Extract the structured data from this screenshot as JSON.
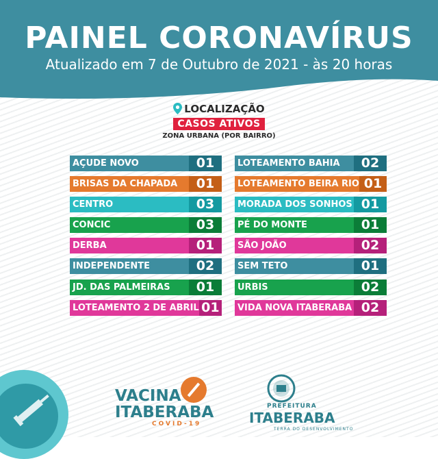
{
  "header": {
    "title": "PAINEL CORONAVÍRUS",
    "subtitle": "Atualizado em 7 de Outubro de 2021 - às 20 horas"
  },
  "section": {
    "location_label": "LOCALIZAÇÃO",
    "badge": "CASOS ATIVOS",
    "zone": "ZONA URBANA (POR BAIRRO)"
  },
  "left_column": [
    {
      "name": "AÇUDE NOVO",
      "count": "01",
      "color": "#3e8ea0",
      "dark": "#1f6f80"
    },
    {
      "name": "BRISAS DA CHAPADA",
      "count": "01",
      "color": "#e57a2e",
      "dark": "#c45f17"
    },
    {
      "name": "CENTRO",
      "count": "03",
      "color": "#2bbcc2",
      "dark": "#149aa1"
    },
    {
      "name": "CONCIC",
      "count": "03",
      "color": "#18a24d",
      "dark": "#0b7d38"
    },
    {
      "name": "DERBA",
      "count": "01",
      "color": "#e0389a",
      "dark": "#b5207a"
    },
    {
      "name": "INDEPENDENTE",
      "count": "02",
      "color": "#3e8ea0",
      "dark": "#1f6f80"
    },
    {
      "name": "JD. DAS PALMEIRAS",
      "count": "01",
      "color": "#18a24d",
      "dark": "#0b7d38"
    },
    {
      "name": "LOTEAMENTO 2 DE ABRIL",
      "count": "01",
      "color": "#e0389a",
      "dark": "#b5207a"
    }
  ],
  "right_column": [
    {
      "name": "LOTEAMENTO BAHIA",
      "count": "02",
      "color": "#3e8ea0",
      "dark": "#1f6f80"
    },
    {
      "name": "LOTEAMENTO BEIRA RIO",
      "count": "01",
      "color": "#e57a2e",
      "dark": "#c45f17"
    },
    {
      "name": "MORADA DOS SONHOS",
      "count": "01",
      "color": "#2bbcc2",
      "dark": "#149aa1"
    },
    {
      "name": "PÉ DO MONTE",
      "count": "01",
      "color": "#18a24d",
      "dark": "#0b7d38"
    },
    {
      "name": "SÃO JOÃO",
      "count": "02",
      "color": "#e0389a",
      "dark": "#b5207a"
    },
    {
      "name": "SEM TETO",
      "count": "01",
      "color": "#3e8ea0",
      "dark": "#1f6f80"
    },
    {
      "name": "URBIS",
      "count": "02",
      "color": "#18a24d",
      "dark": "#0b7d38"
    },
    {
      "name": "VIDA NOVA ITABERABA",
      "count": "02",
      "color": "#e0389a",
      "dark": "#b5207a"
    }
  ],
  "footer": {
    "vacina_line1": "VACINA",
    "vacina_line2": "ITABERABA",
    "covid": "COVID-19",
    "pref_label": "PREFEITURA",
    "pref_city": "ITABERABA",
    "pref_tag": "TERRA DO DESENVOLVIMENTO"
  },
  "colors": {
    "header": "#3e8ea0",
    "badge": "#e0213e"
  },
  "icons": [
    "location-pin-icon",
    "syringe-icon",
    "city-seal-icon"
  ]
}
